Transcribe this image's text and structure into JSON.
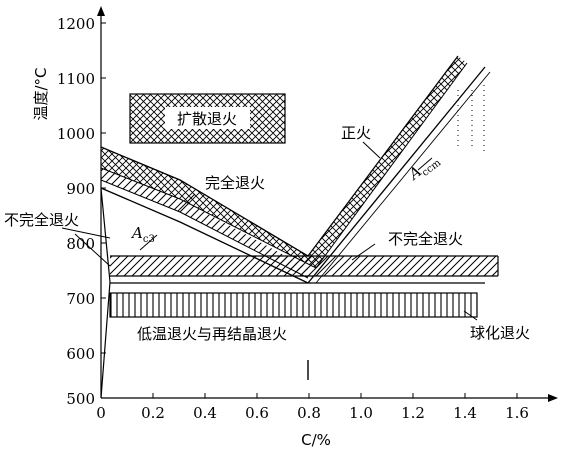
{
  "chart_data": {
    "type": "diagram",
    "title": "",
    "xlabel": "C/%",
    "ylabel": "温度/°C",
    "x_ticks": [
      "0",
      "0.2",
      "0.4",
      "0.6",
      "0.8",
      "1.0",
      "1.2",
      "1.4",
      "1.6"
    ],
    "y_ticks": [
      "500",
      "600",
      "700",
      "800",
      "900",
      "1000",
      "1100",
      "1200"
    ],
    "xlim": [
      0,
      1.6
    ],
    "ylim": [
      500,
      1200
    ],
    "regions": [
      {
        "label": "扩散退火",
        "x": [
          0.1,
          0.48
        ],
        "y": [
          980,
          1070
        ],
        "pattern": "crosshatch"
      },
      {
        "label": "正火",
        "pattern": "crosshatch"
      },
      {
        "label": "完全退火",
        "pattern": "diagonal"
      },
      {
        "label": "不完全退火",
        "side": "left"
      },
      {
        "label": "不完全退火",
        "side": "right",
        "x": [
          0.8,
          1.5
        ],
        "y": [
          740,
          775
        ],
        "pattern": "diagonal"
      },
      {
        "label": "低温退火与再结晶退火",
        "x": [
          0.03,
          1.46
        ],
        "y": [
          660,
          705
        ],
        "pattern": "vertical"
      },
      {
        "label": "球化退火"
      }
    ],
    "curves": [
      {
        "label_main": "A",
        "label_sub": "c3"
      },
      {
        "label_main": "A",
        "label_sub": "ccm"
      }
    ]
  }
}
